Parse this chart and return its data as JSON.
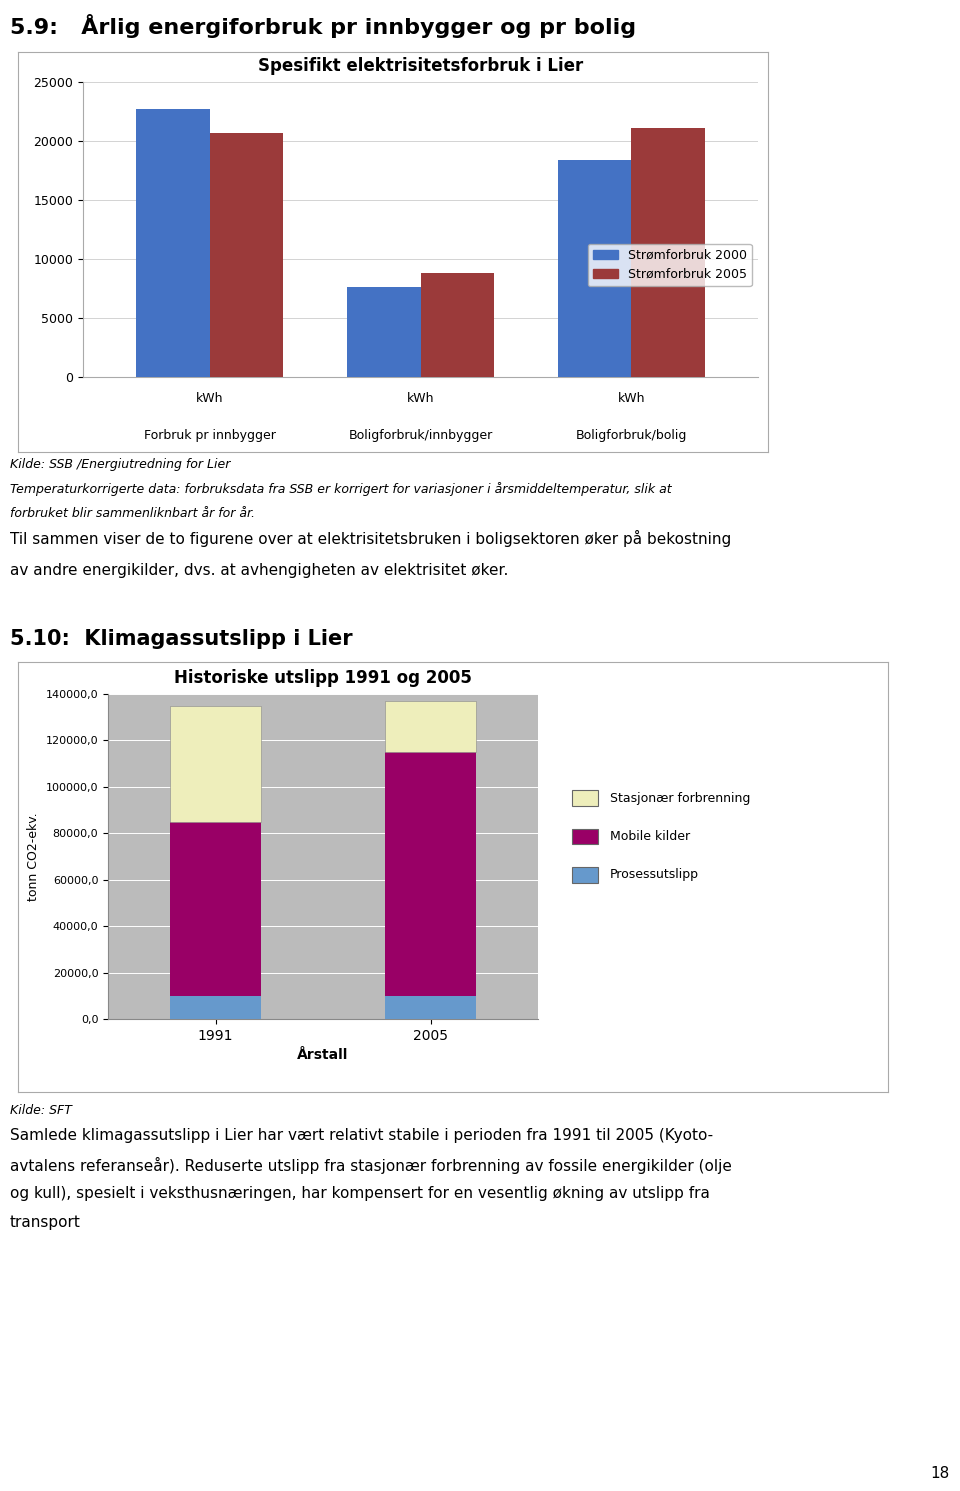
{
  "page_title": "5.9:   Årlig energiforbruk pr innbygger og pr bolig",
  "chart1": {
    "title": "Spesifikt elektrisitetsforbruk i Lier",
    "categories": [
      "Forbruk pr innbygger",
      "Boligforbruk/innbygger",
      "Boligforbruk/bolig"
    ],
    "cat_labels_top": [
      "kWh",
      "kWh",
      "kWh"
    ],
    "values_2000": [
      22700,
      7600,
      18400
    ],
    "values_2005": [
      20700,
      8800,
      21100
    ],
    "bar_color_2000": "#4472C4",
    "bar_color_2005": "#9B3A3A",
    "legend_2000": "Strømforbruk 2000",
    "legend_2005": "Strømforbruk 2005",
    "ylim": [
      0,
      25000
    ],
    "yticks": [
      0,
      5000,
      10000,
      15000,
      20000,
      25000
    ],
    "source_note": "Kilde: SSB /Energiutredning for Lier",
    "source_note2": "Temperaturkorrigerte data: forbruksdata fra SSB er korrigert for variasjoner i årsmiddeltemperatur, slik at",
    "source_note3": "forbruket blir sammenliknbart år for år."
  },
  "text_between_1": "Til sammen viser de to figurene over at elektrisitetsbruken i boligsektoren øker på bekostning",
  "text_between_2": "av andre energikilder, dvs. at avhengigheten av elektrisitet øker.",
  "section_title": "5.10:  Klimagassutslipp i Lier",
  "chart2": {
    "title": "Historiske utslipp 1991 og 2005",
    "years": [
      "1991",
      "2005"
    ],
    "prosess": [
      10000,
      10000
    ],
    "mobile": [
      75000,
      105000
    ],
    "stasjonar": [
      50000,
      22000
    ],
    "color_stasjonar": "#EEEEBB",
    "color_mobile": "#990066",
    "color_prosess": "#6699CC",
    "legend_stasjonar": "Stasjonær forbrenning",
    "legend_mobile": "Mobile kilder",
    "legend_prosess": "Prosessutslipp",
    "ylabel": "tonn CO2-ekv.",
    "xlabel": "Årstall",
    "ylim": [
      0,
      140000
    ],
    "yticks": [
      0,
      20000,
      40000,
      60000,
      80000,
      100000,
      120000,
      140000
    ],
    "ytick_labels": [
      "0,0",
      "20000,0",
      "40000,0",
      "60000,0",
      "80000,0",
      "100000,0",
      "120000,0",
      "140000,0"
    ],
    "source_note": "Kilde: SFT"
  },
  "footer_line1": "Samlede klimagassutslipp i Lier har vært relativt stabile i perioden fra 1991 til 2005 (Kyoto-",
  "footer_line2": "avtalens referanseår). Reduserte utslipp fra stasjonær forbrenning av fossile energikilder (olje",
  "footer_line3": "og kull), spesielt i veksthusnæringen, har kompensert for en vesentlig økning av utslipp fra",
  "footer_line4": "transport",
  "page_number": "18"
}
